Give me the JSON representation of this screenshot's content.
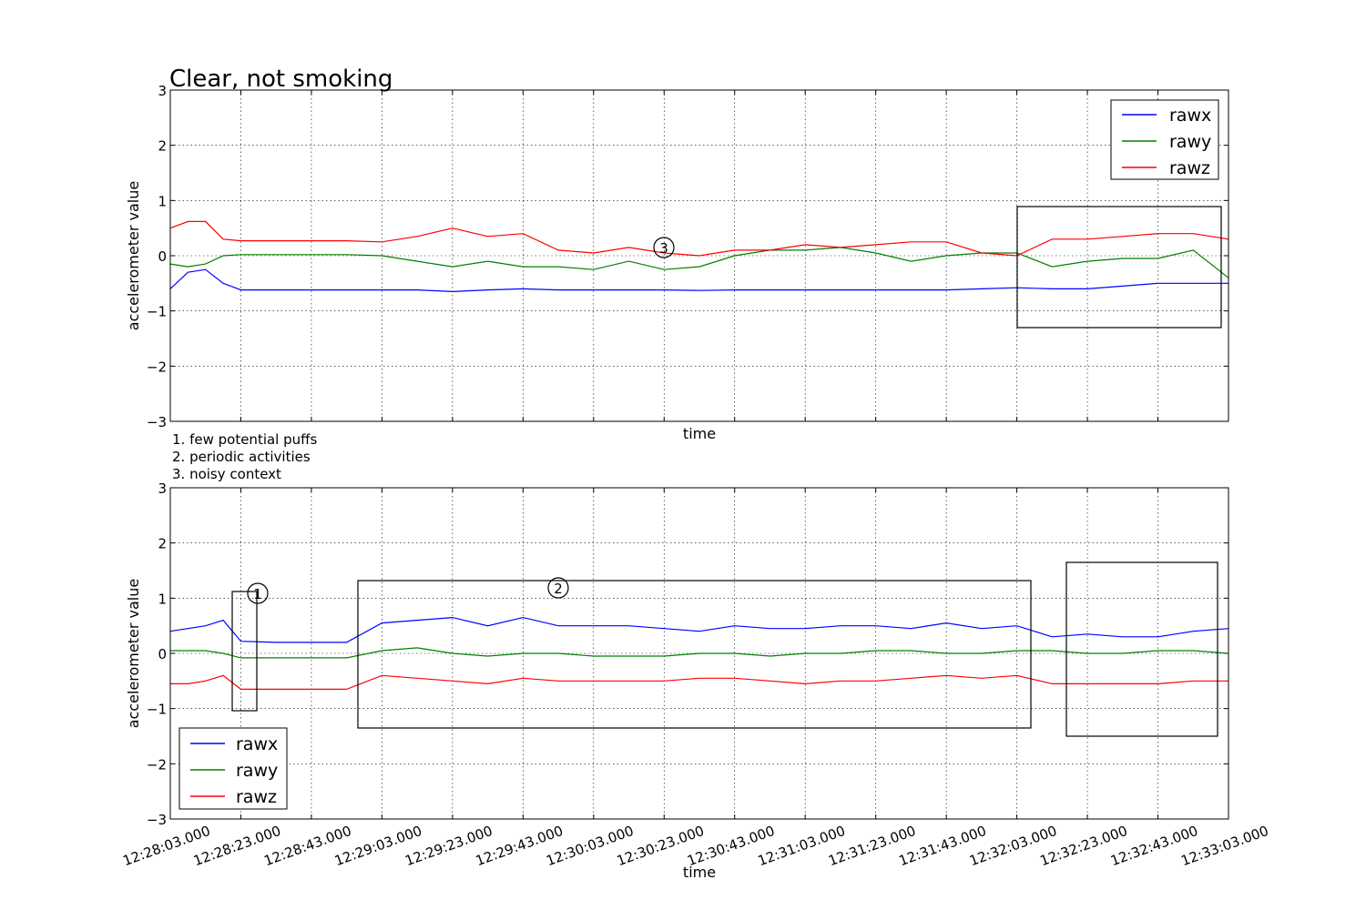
{
  "figure_title": "Clear, not smoking",
  "notes": [
    "1. few potential puffs",
    "2. periodic activities",
    "3. noisy context"
  ],
  "colors": {
    "rawx": "#0000ff",
    "rawy": "#008000",
    "rawz": "#ff0000",
    "frame": "#000000",
    "grid": "#000000"
  },
  "chart_data": [
    {
      "type": "line",
      "title": "Clear, not smoking",
      "xlabel": "time",
      "ylabel": "accelerometer value",
      "ylim": [
        -3,
        3
      ],
      "yticks": [
        "3",
        "2",
        "1",
        "0",
        "−1",
        "−2",
        "−3"
      ],
      "xlim": [
        "12:28:03.000",
        "12:33:03.000"
      ],
      "x_tick_labels": [],
      "grid": true,
      "legend": {
        "position": "top-right",
        "entries": [
          "rawx",
          "rawy",
          "rawz"
        ]
      },
      "x": [
        "12:28:03",
        "12:28:08",
        "12:28:13",
        "12:28:18",
        "12:28:23",
        "12:28:33",
        "12:28:43",
        "12:28:53",
        "12:29:03",
        "12:29:13",
        "12:29:23",
        "12:29:33",
        "12:29:43",
        "12:29:53",
        "12:30:03",
        "12:30:13",
        "12:30:23",
        "12:30:33",
        "12:30:43",
        "12:30:53",
        "12:31:03",
        "12:31:13",
        "12:31:23",
        "12:31:33",
        "12:31:43",
        "12:31:53",
        "12:32:03",
        "12:32:13",
        "12:32:23",
        "12:32:33",
        "12:32:43",
        "12:32:53",
        "12:33:03"
      ],
      "series": [
        {
          "name": "rawx",
          "values": [
            -0.6,
            -0.3,
            -0.25,
            -0.5,
            -0.62,
            -0.62,
            -0.62,
            -0.62,
            -0.62,
            -0.62,
            -0.65,
            -0.62,
            -0.6,
            -0.62,
            -0.62,
            -0.62,
            -0.62,
            -0.63,
            -0.62,
            -0.62,
            -0.62,
            -0.62,
            -0.62,
            -0.62,
            -0.62,
            -0.6,
            -0.58,
            -0.6,
            -0.6,
            -0.55,
            -0.5,
            -0.5,
            -0.5
          ]
        },
        {
          "name": "rawy",
          "values": [
            -0.15,
            -0.2,
            -0.15,
            0.0,
            0.02,
            0.02,
            0.02,
            0.02,
            0.0,
            -0.1,
            -0.2,
            -0.1,
            -0.2,
            -0.2,
            -0.25,
            -0.1,
            -0.25,
            -0.2,
            0.0,
            0.1,
            0.1,
            0.15,
            0.05,
            -0.1,
            0.0,
            0.05,
            0.05,
            -0.2,
            -0.1,
            -0.05,
            -0.05,
            0.1,
            -0.4
          ]
        },
        {
          "name": "rawz",
          "values": [
            0.5,
            0.62,
            0.62,
            0.3,
            0.27,
            0.27,
            0.27,
            0.27,
            0.25,
            0.35,
            0.5,
            0.35,
            0.4,
            0.1,
            0.05,
            0.15,
            0.05,
            0.0,
            0.1,
            0.1,
            0.2,
            0.15,
            0.2,
            0.25,
            0.25,
            0.05,
            0.0,
            0.3,
            0.3,
            0.35,
            0.4,
            0.4,
            0.3
          ]
        }
      ],
      "annotations": [
        {
          "label": "3",
          "x": "12:30:23",
          "y": 0.15
        }
      ]
    },
    {
      "type": "line",
      "xlabel": "time",
      "ylabel": "accelerometer value",
      "ylim": [
        -3,
        3
      ],
      "yticks": [
        "3",
        "2",
        "1",
        "0",
        "−1",
        "−2",
        "−3"
      ],
      "xlim": [
        "12:28:03.000",
        "12:33:03.000"
      ],
      "x_tick_labels": [
        "12:28:03.000",
        "12:28:23.000",
        "12:28:43.000",
        "12:29:03.000",
        "12:29:23.000",
        "12:29:43.000",
        "12:30:03.000",
        "12:30:23.000",
        "12:30:43.000",
        "12:31:03.000",
        "12:31:23.000",
        "12:31:43.000",
        "12:32:03.000",
        "12:32:23.000",
        "12:32:43.000",
        "12:33:03.000"
      ],
      "grid": true,
      "legend": {
        "position": "bottom-left",
        "entries": [
          "rawx",
          "rawy",
          "rawz"
        ]
      },
      "x": [
        "12:28:03",
        "12:28:08",
        "12:28:13",
        "12:28:18",
        "12:28:23",
        "12:28:33",
        "12:28:43",
        "12:28:53",
        "12:29:03",
        "12:29:13",
        "12:29:23",
        "12:29:33",
        "12:29:43",
        "12:29:53",
        "12:30:03",
        "12:30:13",
        "12:30:23",
        "12:30:33",
        "12:30:43",
        "12:30:53",
        "12:31:03",
        "12:31:13",
        "12:31:23",
        "12:31:33",
        "12:31:43",
        "12:31:53",
        "12:32:03",
        "12:32:13",
        "12:32:23",
        "12:32:33",
        "12:32:43",
        "12:32:53",
        "12:33:03"
      ],
      "series": [
        {
          "name": "rawx",
          "values": [
            0.4,
            0.45,
            0.5,
            0.6,
            0.22,
            0.2,
            0.2,
            0.2,
            0.55,
            0.6,
            0.65,
            0.5,
            0.65,
            0.5,
            0.5,
            0.5,
            0.45,
            0.4,
            0.5,
            0.45,
            0.45,
            0.5,
            0.5,
            0.45,
            0.55,
            0.45,
            0.5,
            0.3,
            0.35,
            0.3,
            0.3,
            0.4,
            0.45
          ]
        },
        {
          "name": "rawy",
          "values": [
            0.05,
            0.05,
            0.05,
            0.0,
            -0.08,
            -0.08,
            -0.08,
            -0.08,
            0.05,
            0.1,
            0.0,
            -0.05,
            0.0,
            0.0,
            -0.05,
            -0.05,
            -0.05,
            0.0,
            0.0,
            -0.05,
            0.0,
            0.0,
            0.05,
            0.05,
            0.0,
            0.0,
            0.05,
            0.05,
            0.0,
            0.0,
            0.05,
            0.05,
            0.0
          ]
        },
        {
          "name": "rawz",
          "values": [
            -0.55,
            -0.55,
            -0.5,
            -0.4,
            -0.65,
            -0.65,
            -0.65,
            -0.65,
            -0.4,
            -0.45,
            -0.5,
            -0.55,
            -0.45,
            -0.5,
            -0.5,
            -0.5,
            -0.5,
            -0.45,
            -0.45,
            -0.5,
            -0.55,
            -0.5,
            -0.5,
            -0.45,
            -0.4,
            -0.45,
            -0.4,
            -0.55,
            -0.55,
            -0.55,
            -0.55,
            -0.5,
            -0.5
          ]
        }
      ],
      "annotations": [
        {
          "label": "1",
          "x": "12:28:23",
          "y": 1.1
        },
        {
          "label": "2",
          "x": "12:29:53",
          "y": 1.2
        }
      ]
    }
  ]
}
